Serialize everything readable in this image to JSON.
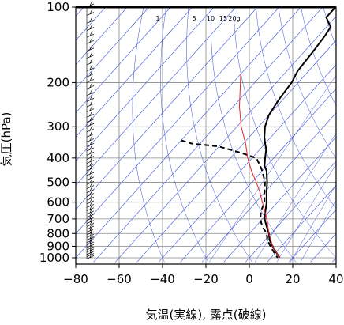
{
  "chart_data": {
    "type": "skew-T log-p diagram",
    "xlabel": "気温(実線), 露点(破線)",
    "ylabel": "気圧(hPa)",
    "x_ticks": [
      -80,
      -60,
      -40,
      -20,
      0,
      20,
      40
    ],
    "x_tick_labels": [
      "−80",
      "−60",
      "−40",
      "−20",
      "0",
      "20",
      "40"
    ],
    "y_ticks": [
      100,
      200,
      300,
      400,
      500,
      600,
      700,
      800,
      900,
      1000
    ],
    "y_tick_labels": [
      "100",
      "200",
      "300",
      "400",
      "500",
      "600",
      "700",
      "800",
      "900",
      "1000"
    ],
    "y_scale": "log",
    "xlim_at_1000hPa": [
      -80,
      40
    ],
    "ylim": [
      1040,
      100
    ],
    "mixing_ratio_labels": [
      "1",
      "5",
      "10",
      "15",
      "20g"
    ],
    "mixing_ratio_values": [
      1,
      5,
      10,
      15,
      20
    ],
    "series": [
      {
        "style": "solid black",
        "points": [
          [
            100,
            -64
          ],
          [
            110,
            -64
          ],
          [
            120,
            -58
          ],
          [
            130,
            -57
          ],
          [
            150,
            -56
          ],
          [
            180,
            -55
          ],
          [
            200,
            -53
          ],
          [
            230,
            -52
          ],
          [
            250,
            -51
          ],
          [
            270,
            -50
          ],
          [
            300,
            -47
          ],
          [
            330,
            -43
          ],
          [
            350,
            -40
          ],
          [
            370,
            -37
          ],
          [
            400,
            -34
          ],
          [
            430,
            -31
          ],
          [
            450,
            -28
          ],
          [
            500,
            -23
          ],
          [
            550,
            -19
          ],
          [
            600,
            -15
          ],
          [
            650,
            -12
          ],
          [
            700,
            -9
          ],
          [
            750,
            -5
          ],
          [
            800,
            -1
          ],
          [
            850,
            2
          ],
          [
            900,
            6
          ],
          [
            950,
            10
          ],
          [
            1000,
            14
          ]
        ]
      },
      {
        "style": "dashed black",
        "points": [
          [
            340,
            -80
          ],
          [
            350,
            -74
          ],
          [
            360,
            -60
          ],
          [
            380,
            -48
          ],
          [
            400,
            -38
          ],
          [
            430,
            -33
          ],
          [
            450,
            -30
          ],
          [
            500,
            -24
          ],
          [
            550,
            -20
          ],
          [
            600,
            -16
          ],
          [
            650,
            -14
          ],
          [
            700,
            -11
          ],
          [
            750,
            -7
          ],
          [
            800,
            -2
          ],
          [
            850,
            1
          ],
          [
            900,
            5
          ],
          [
            950,
            9
          ],
          [
            1000,
            13
          ]
        ]
      },
      {
        "style": "solid red",
        "points": [
          [
            185,
            -80
          ],
          [
            250,
            -67
          ],
          [
            300,
            -58
          ],
          [
            350,
            -49
          ],
          [
            400,
            -42
          ],
          [
            450,
            -35
          ],
          [
            500,
            -28
          ],
          [
            550,
            -22
          ],
          [
            600,
            -17
          ],
          [
            700,
            -8
          ],
          [
            800,
            -1
          ],
          [
            900,
            6
          ],
          [
            1000,
            14
          ]
        ]
      }
    ],
    "wind_column": "wind barbs at x = −75",
    "wind_barbs_pressures": [
      100,
      108,
      116,
      124,
      132,
      140,
      150,
      160,
      170,
      180,
      190,
      200,
      212,
      225,
      238,
      250,
      262,
      275,
      288,
      300,
      315,
      330,
      345,
      360,
      375,
      390,
      405,
      420,
      435,
      450,
      470,
      490,
      510,
      530,
      550,
      570,
      590,
      610,
      630,
      650,
      670,
      690,
      710,
      730,
      750,
      770,
      790,
      810,
      830,
      850,
      870,
      890,
      910,
      930,
      950,
      970,
      990,
      1010
    ]
  }
}
